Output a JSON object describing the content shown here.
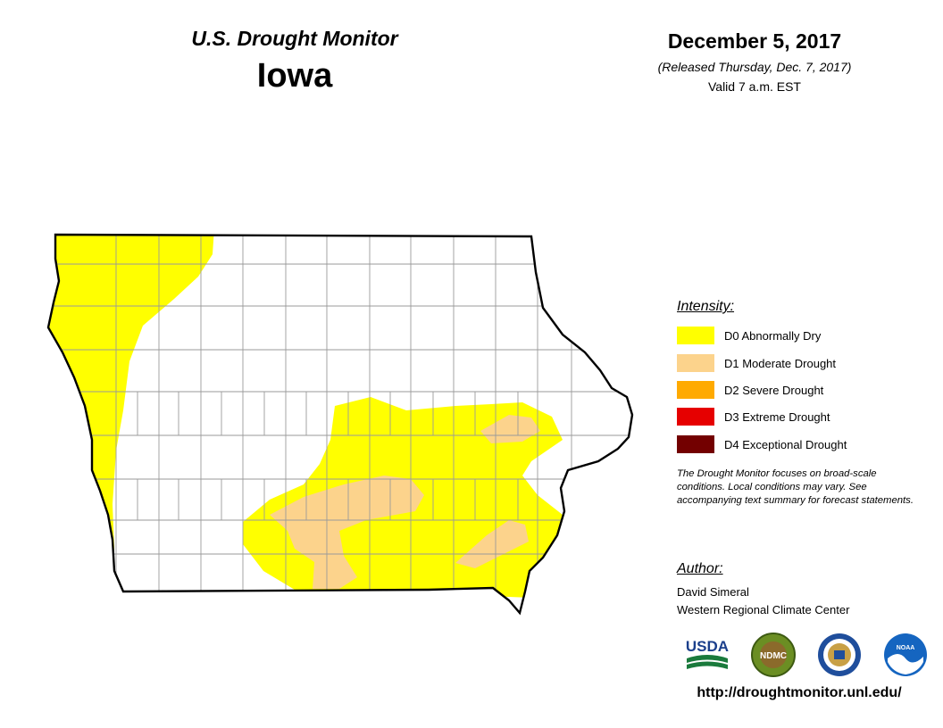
{
  "header": {
    "product": "U.S. Drought Monitor",
    "state": "Iowa",
    "date": "December 5, 2017",
    "released": "(Released Thursday, Dec. 7, 2017)",
    "valid": "Valid 7 a.m. EST"
  },
  "legend": {
    "title": "Intensity:",
    "items": [
      {
        "code": "D0",
        "label": "D0 Abnormally Dry",
        "color": "#ffff00"
      },
      {
        "code": "D1",
        "label": "D1 Moderate Drought",
        "color": "#fcd38c"
      },
      {
        "code": "D2",
        "label": "D2 Severe Drought",
        "color": "#ffaa00"
      },
      {
        "code": "D3",
        "label": "D3 Extreme Drought",
        "color": "#e60000"
      },
      {
        "code": "D4",
        "label": "D4 Exceptional Drought",
        "color": "#730000"
      }
    ]
  },
  "note": "The Drought Monitor focuses on broad-scale conditions. Local conditions may vary. See accompanying text summary for forecast statements.",
  "author": {
    "title": "Author:",
    "name": "David Simeral",
    "org": "Western Regional Climate Center"
  },
  "logos": [
    {
      "icon": "usda-logo",
      "text": "USDA"
    },
    {
      "icon": "ndmc-logo",
      "text": "NDMC"
    },
    {
      "icon": "doc-seal-logo",
      "text": ""
    },
    {
      "icon": "noaa-logo",
      "text": "NOAA"
    }
  ],
  "url": "http://droughtmonitor.unl.edu/"
}
